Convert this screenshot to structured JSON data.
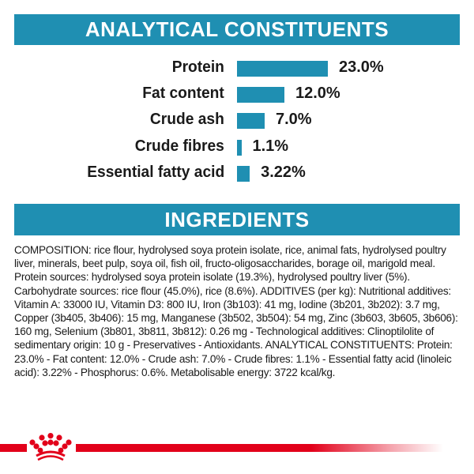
{
  "colors": {
    "accent": "#1f8fb2",
    "brand_red": "#e2001a",
    "text": "#1a1a1a",
    "background": "#ffffff"
  },
  "sections": {
    "analytical_title": "ANALYTICAL CONSTITUENTS",
    "ingredients_title": "INGREDIENTS"
  },
  "chart_data": {
    "type": "bar",
    "orientation": "horizontal",
    "title": "ANALYTICAL CONSTITUENTS",
    "categories": [
      "Protein",
      "Fat content",
      "Crude ash",
      "Crude fibres",
      "Essential fatty acid"
    ],
    "values": [
      23.0,
      12.0,
      7.0,
      1.1,
      3.22
    ],
    "value_labels": [
      "23.0%",
      "12.0%",
      "7.0%",
      "1.1%",
      "3.22%"
    ],
    "unit": "%",
    "xlabel": "",
    "ylabel": "",
    "grid": false,
    "legend": "none",
    "bar_color": "#1f8fb2"
  },
  "ingredients": {
    "text": "COMPOSITION: rice flour, hydrolysed soya protein isolate, rice, animal fats, hydrolysed poultry liver, minerals, beet pulp, soya oil, fish oil, fructo-oligosaccharides, borage oil, marigold meal. Protein sources: hydrolysed soya protein isolate (19.3%), hydrolysed poultry liver (5%). Carbohydrate sources: rice flour (45.0%), rice (8.6%). ADDITIVES (per kg): Nutritional additives: Vitamin A: 33000 IU, Vitamin D3: 800 IU, Iron (3b103): 41 mg, Iodine (3b201, 3b202): 3.7 mg, Copper (3b405, 3b406): 15 mg, Manganese (3b502, 3b504): 54 mg, Zinc (3b603, 3b605, 3b606): 160 mg, Selenium (3b801, 3b811, 3b812): 0.26 mg - Technological additives: Clinoptilolite of sedimentary origin: 10 g - Preservatives - Antioxidants. ANALYTICAL CONSTITUENTS: Protein: 23.0% - Fat content: 12.0% - Crude ash: 7.0% - Crude fibres: 1.1% - Essential fatty acid (linoleic acid): 3.22% - Phosphorus: 0.6%. Metabolisable energy: 3722 kcal/kg."
  },
  "footer": {
    "logo_icon": "crown-logo-icon"
  }
}
